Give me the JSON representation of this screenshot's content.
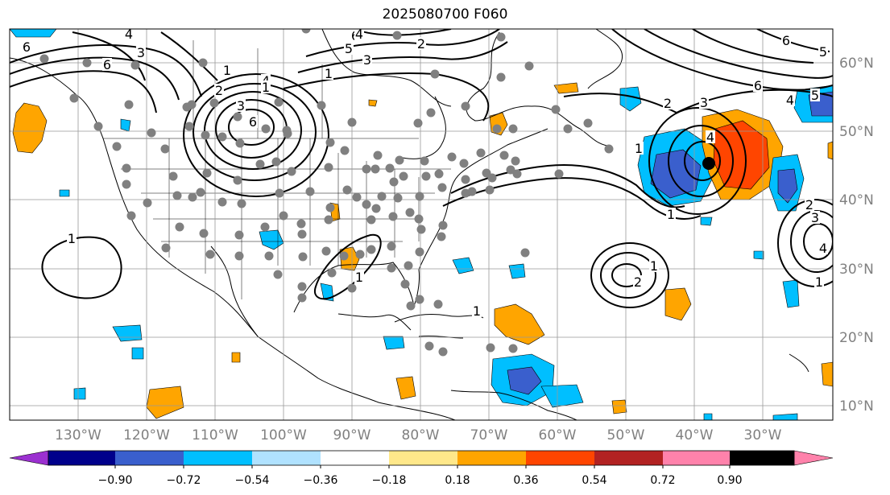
{
  "title": "2025080700 F060",
  "lon_labels": [
    "130°W",
    "120°W",
    "110°W",
    "100°W",
    "90°W",
    "80°W",
    "70°W",
    "60°W",
    "50°W",
    "40°W",
    "30°W"
  ],
  "lat_labels": [
    "60°N",
    "50°N",
    "40°N",
    "30°N",
    "20°N",
    "10°N"
  ],
  "colorbar": {
    "colors": [
      "#9b30d0",
      "#00008b",
      "#3a5fcd",
      "#00bfff",
      "#b0e2ff",
      "#ffffff",
      "#ffe88a",
      "#ffa500",
      "#ff4500",
      "#b22222",
      "#ff82ab"
    ],
    "tick_labels": [
      "−0.90",
      "−0.72",
      "−0.54",
      "−0.36",
      "−0.18",
      "0.18",
      "0.36",
      "0.54",
      "0.72",
      "0.90"
    ]
  },
  "contour_labels": [
    {
      "text": "6"
    },
    {
      "text": "4"
    },
    {
      "text": "3"
    },
    {
      "text": "6"
    },
    {
      "text": "5"
    },
    {
      "text": "3"
    },
    {
      "text": "1"
    },
    {
      "text": "2"
    },
    {
      "text": "3"
    },
    {
      "text": "6"
    },
    {
      "text": "4"
    },
    {
      "text": "6"
    },
    {
      "text": "4"
    },
    {
      "text": "3"
    },
    {
      "text": "2"
    },
    {
      "text": "1"
    },
    {
      "text": "1"
    },
    {
      "text": "2"
    },
    {
      "text": "3"
    },
    {
      "text": "4"
    },
    {
      "text": "1"
    },
    {
      "text": "6"
    },
    {
      "text": "5"
    },
    {
      "text": "6"
    },
    {
      "text": "4"
    },
    {
      "text": "5"
    },
    {
      "text": "1"
    },
    {
      "text": "2"
    },
    {
      "text": "1"
    },
    {
      "text": "2"
    },
    {
      "text": "1"
    },
    {
      "text": "3"
    },
    {
      "text": "4"
    },
    {
      "text": "1"
    },
    {
      "text": "1"
    },
    {
      "text": "1"
    }
  ]
}
